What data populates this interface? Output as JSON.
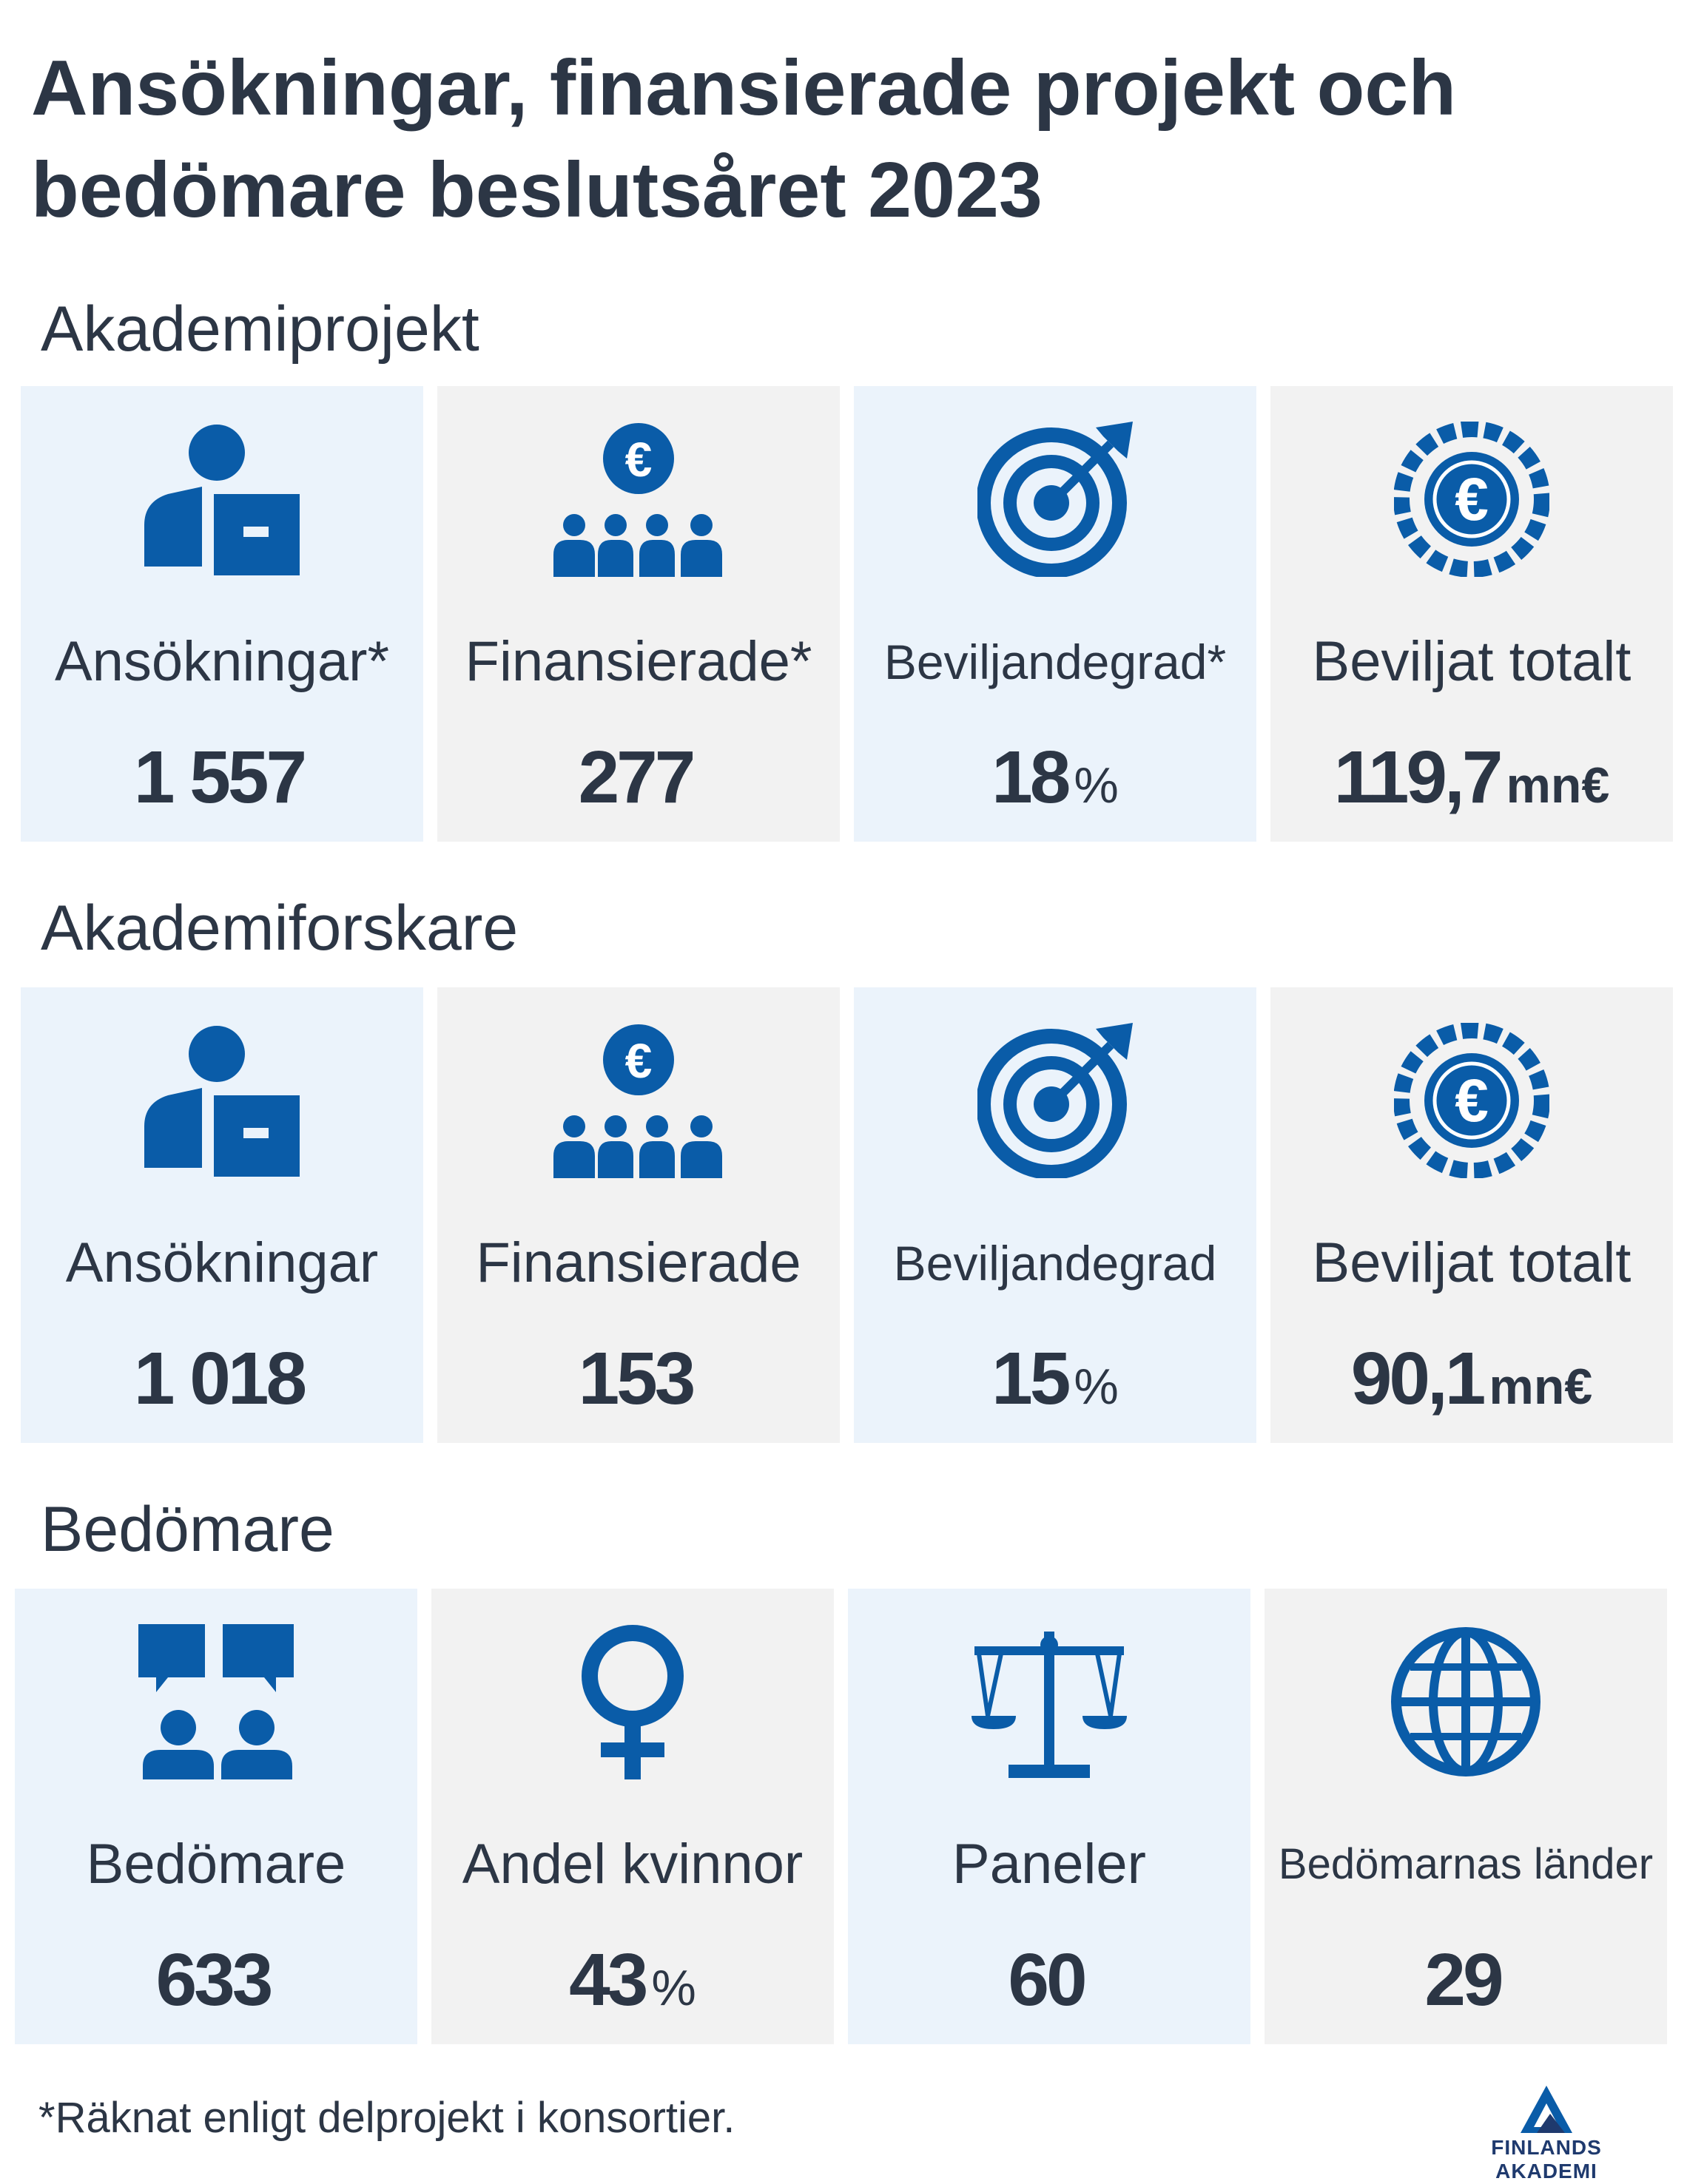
{
  "title": "Ansökningar, finansierade projekt och bedömare beslutsåret 2023",
  "sections": [
    {
      "heading": "Akademiprojekt",
      "cards": [
        {
          "icon": "applicant-icon",
          "label": "Ansökningar*",
          "value": "1 557",
          "unit": ""
        },
        {
          "icon": "funded-group-icon",
          "label": "Finansierade*",
          "value": "277",
          "unit": ""
        },
        {
          "icon": "target-icon",
          "label": "Beviljandegrad*",
          "value": "18",
          "unit": "%"
        },
        {
          "icon": "euro-coin-icon",
          "label": "Beviljat totalt",
          "value": "119,7",
          "unit": "mn€"
        }
      ]
    },
    {
      "heading": "Akademiforskare",
      "cards": [
        {
          "icon": "applicant-icon",
          "label": "Ansökningar",
          "value": "1 018",
          "unit": ""
        },
        {
          "icon": "funded-group-icon",
          "label": "Finansierade",
          "value": "153",
          "unit": ""
        },
        {
          "icon": "target-icon",
          "label": "Beviljandegrad",
          "value": "15",
          "unit": "%"
        },
        {
          "icon": "euro-coin-icon",
          "label": "Beviljat totalt",
          "value": "90,1",
          "unit": "mn€"
        }
      ]
    },
    {
      "heading": "Bedömare",
      "cards": [
        {
          "icon": "reviewers-icon",
          "label": "Bedömare",
          "value": "633",
          "unit": ""
        },
        {
          "icon": "female-icon",
          "label": "Andel kvinnor",
          "value": "43",
          "unit": "%"
        },
        {
          "icon": "scales-icon",
          "label": "Paneler",
          "value": "60",
          "unit": ""
        },
        {
          "icon": "globe-icon",
          "label": "Bedömarnas länder",
          "value": "29",
          "unit": ""
        }
      ]
    }
  ],
  "footnote": "*Räknat enligt delprojekt i konsortier.",
  "logo_text": "FINLANDS AKADEMI",
  "colors": {
    "icon": "#0a5ca8",
    "text": "#2c3645",
    "card_blue": "#ebf3fb",
    "card_grey": "#f2f2f2"
  }
}
